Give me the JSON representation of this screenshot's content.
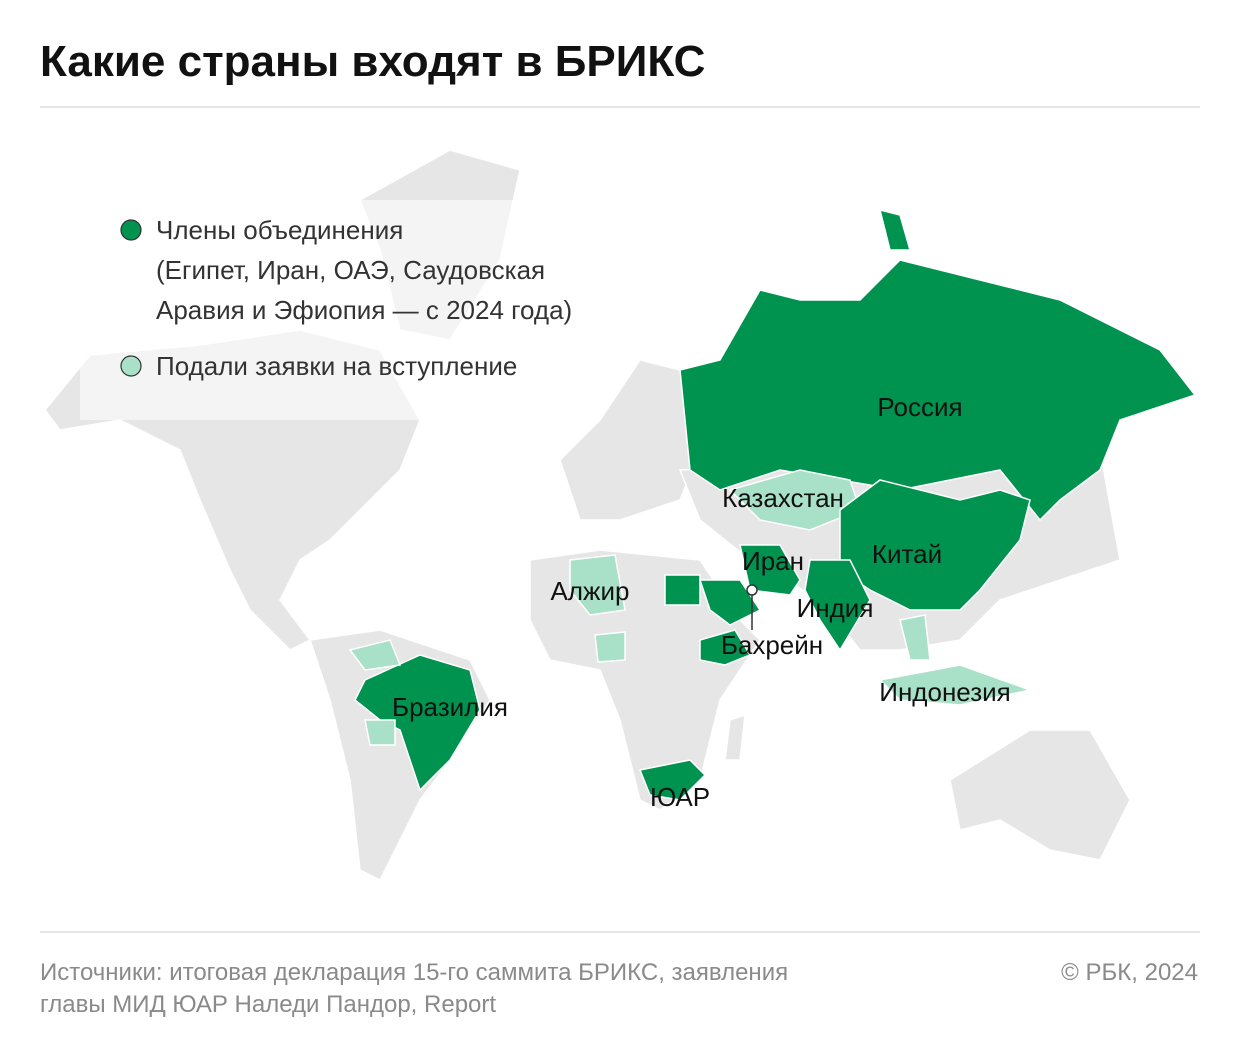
{
  "title": "Какие страны входят в БРИКС",
  "legend": [
    {
      "lines": [
        "Члены объединения",
        "(Египет, Иран, ОАЭ, Саудовская",
        "Аравия и Эфиопия — с 2024 года)"
      ],
      "color": "#00924f"
    },
    {
      "lines": [
        "Подали заявки на вступление"
      ],
      "color": "#a8e0c8"
    }
  ],
  "labels": [
    "Россия",
    "Казахстан",
    "Китай",
    "Иран",
    "Алжир",
    "Индия",
    "Бахрейн",
    "Индонезия",
    "Бразилия",
    "ЮАР"
  ],
  "footer": {
    "source": [
      "Источники: итоговая декларация 15-го саммита БРИКС, заявления",
      "главы МИД ЮАР Наледи Пандор, Report"
    ],
    "copyright": "© РБК, 2024"
  }
}
